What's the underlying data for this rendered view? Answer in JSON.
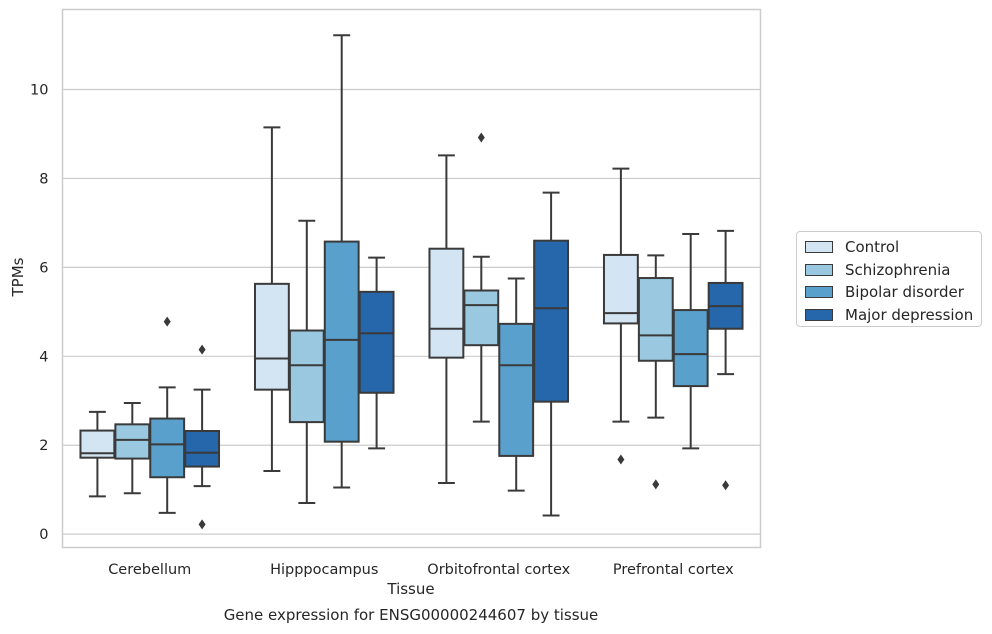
{
  "chart_data": {
    "type": "box",
    "xlabel": "Tissue",
    "ylabel": "TPMs",
    "caption": "Gene expression for ENSG00000244607 by tissue",
    "ylim": [
      -0.3,
      11.8
    ],
    "yticks": [
      0,
      2,
      4,
      6,
      8,
      10
    ],
    "grid": "horizontal",
    "legend_position": "right",
    "categories": [
      "Cerebellum",
      "Hipppocampus",
      "Orbitofrontal cortex",
      "Prefrontal cortex"
    ],
    "series": [
      {
        "name": "Control",
        "color": "#d3e4f3",
        "boxes": [
          {
            "whisker_low": 0.85,
            "q1": 1.72,
            "median": 1.82,
            "q3": 2.33,
            "whisker_high": 2.75,
            "outliers": []
          },
          {
            "whisker_low": 1.42,
            "q1": 3.25,
            "median": 3.95,
            "q3": 5.63,
            "whisker_high": 9.15,
            "outliers": []
          },
          {
            "whisker_low": 1.15,
            "q1": 3.97,
            "median": 4.62,
            "q3": 6.42,
            "whisker_high": 8.52,
            "outliers": []
          },
          {
            "whisker_low": 2.53,
            "q1": 4.74,
            "median": 4.97,
            "q3": 6.28,
            "whisker_high": 8.22,
            "outliers": [
              1.68
            ]
          }
        ]
      },
      {
        "name": "Schizophrenia",
        "color": "#9ac8e0",
        "boxes": [
          {
            "whisker_low": 0.92,
            "q1": 1.7,
            "median": 2.12,
            "q3": 2.47,
            "whisker_high": 2.95,
            "outliers": []
          },
          {
            "whisker_low": 0.7,
            "q1": 2.52,
            "median": 3.8,
            "q3": 4.58,
            "whisker_high": 7.05,
            "outliers": []
          },
          {
            "whisker_low": 2.53,
            "q1": 4.25,
            "median": 5.15,
            "q3": 5.48,
            "whisker_high": 6.24,
            "outliers": [
              8.92
            ]
          },
          {
            "whisker_low": 2.62,
            "q1": 3.9,
            "median": 4.47,
            "q3": 5.76,
            "whisker_high": 6.27,
            "outliers": [
              1.12
            ]
          }
        ]
      },
      {
        "name": "Bipolar disorder",
        "color": "#5aa0cd",
        "boxes": [
          {
            "whisker_low": 0.48,
            "q1": 1.28,
            "median": 2.02,
            "q3": 2.6,
            "whisker_high": 3.3,
            "outliers": [
              4.78
            ]
          },
          {
            "whisker_low": 1.05,
            "q1": 2.08,
            "median": 4.37,
            "q3": 6.58,
            "whisker_high": 11.22,
            "outliers": []
          },
          {
            "whisker_low": 0.98,
            "q1": 1.76,
            "median": 3.8,
            "q3": 4.73,
            "whisker_high": 5.75,
            "outliers": []
          },
          {
            "whisker_low": 1.93,
            "q1": 3.33,
            "median": 4.05,
            "q3": 5.04,
            "whisker_high": 6.75,
            "outliers": []
          }
        ]
      },
      {
        "name": "Major depression",
        "color": "#2666aa",
        "boxes": [
          {
            "whisker_low": 1.08,
            "q1": 1.52,
            "median": 1.83,
            "q3": 2.32,
            "whisker_high": 3.25,
            "outliers": [
              4.15,
              0.22
            ]
          },
          {
            "whisker_low": 1.93,
            "q1": 3.18,
            "median": 4.52,
            "q3": 5.45,
            "whisker_high": 6.22,
            "outliers": []
          },
          {
            "whisker_low": 0.42,
            "q1": 2.98,
            "median": 5.08,
            "q3": 6.6,
            "whisker_high": 7.68,
            "outliers": []
          },
          {
            "whisker_low": 3.6,
            "q1": 4.62,
            "median": 5.13,
            "q3": 5.65,
            "whisker_high": 6.82,
            "outliers": [
              1.1
            ]
          }
        ]
      }
    ]
  }
}
